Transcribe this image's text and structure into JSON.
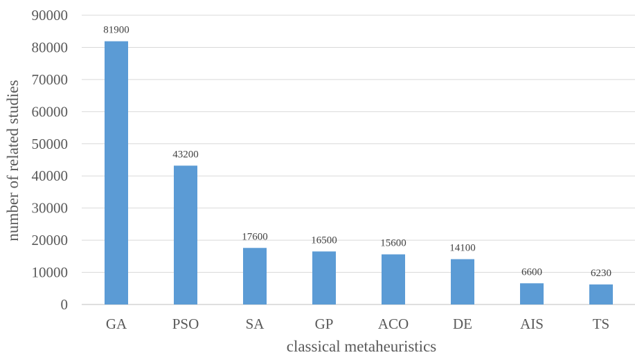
{
  "chart_data": {
    "type": "bar",
    "title": "",
    "xlabel": "classical metaheuristics",
    "ylabel": "number of related studies",
    "categories": [
      "GA",
      "PSO",
      "SA",
      "GP",
      "ACO",
      "DE",
      "AIS",
      "TS"
    ],
    "values": [
      81900,
      43200,
      17600,
      16500,
      15600,
      14100,
      6600,
      6230
    ],
    "data_labels": [
      "81900",
      "43200",
      "17600",
      "16500",
      "15600",
      "14100",
      "6600",
      "6230"
    ],
    "ylim": [
      0,
      90000
    ],
    "yticks": [
      0,
      10000,
      20000,
      30000,
      40000,
      50000,
      60000,
      70000,
      80000,
      90000
    ],
    "ytick_labels": [
      "0",
      "10000",
      "20000",
      "30000",
      "40000",
      "50000",
      "60000",
      "70000",
      "80000",
      "90000"
    ],
    "grid": true,
    "legend": "none",
    "bar_color": "#5B9BD5"
  }
}
